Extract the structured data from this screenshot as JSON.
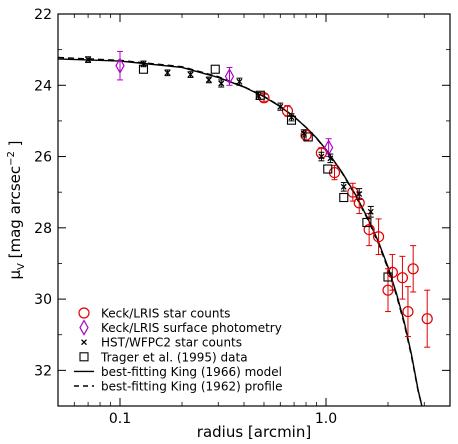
{
  "chart_data": {
    "type": "scatter",
    "xlabel": "radius [arcmin]",
    "ylabel_parts": {
      "mu": "μ",
      "sub": "V",
      "unit": " [mag arcsec",
      "exp": "−2",
      "close": " ]"
    },
    "x_scale": "log",
    "xlim": [
      0.05,
      4.0
    ],
    "ylim": [
      33,
      22
    ],
    "y_inverted": true,
    "x_ticks": [
      0.1,
      1.0
    ],
    "x_tick_labels": [
      "0.1",
      "1.0"
    ],
    "y_ticks": [
      22,
      24,
      26,
      28,
      30,
      32
    ],
    "y_tick_labels": [
      "22",
      "24",
      "26",
      "28",
      "30",
      "32"
    ],
    "legend_position": "bottom-left",
    "legend": [
      {
        "label": "Keck/LRIS star counts",
        "marker": "circle",
        "color": "#e00000"
      },
      {
        "label": "Keck/LRIS surface photometry",
        "marker": "diamond",
        "color": "#b000c8"
      },
      {
        "label": "HST/WFPC2 star counts",
        "marker": "x",
        "color": "#000000"
      },
      {
        "label": "Trager et al. (1995) data",
        "marker": "square",
        "color": "#000000"
      },
      {
        "label": "best-fitting King (1966) model",
        "marker": "solid-line",
        "color": "#000000"
      },
      {
        "label": "best-fitting King (1962) profile",
        "marker": "dashed-line",
        "color": "#000000"
      }
    ],
    "series": [
      {
        "id": "keck-star-counts",
        "marker": "circle",
        "color": "#e00000",
        "points": [
          {
            "x": 0.5,
            "y": 24.35,
            "err": 0.1
          },
          {
            "x": 0.65,
            "y": 24.72,
            "err": 0.15
          },
          {
            "x": 0.8,
            "y": 25.4,
            "err": 0.15
          },
          {
            "x": 0.95,
            "y": 25.9,
            "err": 0.15
          },
          {
            "x": 1.1,
            "y": 26.45,
            "err": 0.2
          },
          {
            "x": 1.35,
            "y": 27.0,
            "err": 0.25
          },
          {
            "x": 1.45,
            "y": 27.3,
            "err": 0.3
          },
          {
            "x": 1.62,
            "y": 28.05,
            "err": 0.45
          },
          {
            "x": 1.8,
            "y": 28.25,
            "err": 0.5
          },
          {
            "x": 2.0,
            "y": 29.75,
            "err": 0.6
          },
          {
            "x": 2.1,
            "y": 29.25,
            "err": 0.5
          },
          {
            "x": 2.35,
            "y": 29.4,
            "err": 0.6
          },
          {
            "x": 2.5,
            "y": 30.35,
            "err": 0.7
          },
          {
            "x": 2.65,
            "y": 29.15,
            "err": 0.65
          },
          {
            "x": 3.1,
            "y": 30.55,
            "err": 0.8
          }
        ]
      },
      {
        "id": "keck-surface-photometry",
        "marker": "diamond",
        "color": "#b000c8",
        "points": [
          {
            "x": 0.1,
            "y": 23.45,
            "err": 0.4
          },
          {
            "x": 0.34,
            "y": 23.75,
            "err": 0.25
          },
          {
            "x": 1.03,
            "y": 25.75,
            "err": 0.25
          }
        ]
      },
      {
        "id": "hst-star-counts",
        "marker": "x",
        "color": "#000000",
        "points": [
          {
            "x": 0.07,
            "y": 23.28,
            "err": 0.08
          },
          {
            "x": 0.13,
            "y": 23.4,
            "err": 0.08
          },
          {
            "x": 0.17,
            "y": 23.65,
            "err": 0.08
          },
          {
            "x": 0.22,
            "y": 23.7,
            "err": 0.08
          },
          {
            "x": 0.27,
            "y": 23.85,
            "err": 0.08
          },
          {
            "x": 0.31,
            "y": 23.95,
            "err": 0.1
          },
          {
            "x": 0.38,
            "y": 23.9,
            "err": 0.1
          },
          {
            "x": 0.47,
            "y": 24.3,
            "err": 0.1
          },
          {
            "x": 0.6,
            "y": 24.6,
            "err": 0.1
          },
          {
            "x": 0.68,
            "y": 24.9,
            "err": 0.1
          },
          {
            "x": 0.78,
            "y": 25.35,
            "err": 0.1
          },
          {
            "x": 0.95,
            "y": 26.0,
            "err": 0.12
          },
          {
            "x": 1.05,
            "y": 26.05,
            "err": 0.12
          },
          {
            "x": 1.22,
            "y": 26.85,
            "err": 0.12
          },
          {
            "x": 1.45,
            "y": 27.05,
            "err": 0.15
          },
          {
            "x": 1.65,
            "y": 27.55,
            "err": 0.15
          }
        ]
      },
      {
        "id": "trager-data",
        "marker": "square",
        "color": "#000000",
        "points": [
          {
            "x": 0.13,
            "y": 23.55
          },
          {
            "x": 0.29,
            "y": 23.55
          },
          {
            "x": 0.48,
            "y": 24.28
          },
          {
            "x": 0.68,
            "y": 24.98
          },
          {
            "x": 0.82,
            "y": 25.45
          },
          {
            "x": 1.02,
            "y": 26.35
          },
          {
            "x": 1.22,
            "y": 27.15
          },
          {
            "x": 1.58,
            "y": 27.85
          },
          {
            "x": 2.0,
            "y": 29.38
          }
        ]
      }
    ],
    "model_curves": [
      {
        "id": "king-1966",
        "style": "solid",
        "color": "#000000",
        "points": [
          [
            0.05,
            23.26
          ],
          [
            0.1,
            23.32
          ],
          [
            0.2,
            23.5
          ],
          [
            0.3,
            23.78
          ],
          [
            0.4,
            24.05
          ],
          [
            0.5,
            24.32
          ],
          [
            0.6,
            24.6
          ],
          [
            0.7,
            24.88
          ],
          [
            0.8,
            25.18
          ],
          [
            0.9,
            25.48
          ],
          [
            1.0,
            25.8
          ],
          [
            1.2,
            26.45
          ],
          [
            1.4,
            27.1
          ],
          [
            1.6,
            27.75
          ],
          [
            1.8,
            28.4
          ],
          [
            2.0,
            29.1
          ],
          [
            2.2,
            29.85
          ],
          [
            2.4,
            30.65
          ],
          [
            2.6,
            31.55
          ],
          [
            2.8,
            32.55
          ],
          [
            2.92,
            33.0
          ]
        ]
      },
      {
        "id": "king-1962",
        "style": "dashed",
        "color": "#000000",
        "points": [
          [
            0.05,
            23.22
          ],
          [
            0.1,
            23.3
          ],
          [
            0.2,
            23.48
          ],
          [
            0.3,
            23.76
          ],
          [
            0.4,
            24.04
          ],
          [
            0.5,
            24.31
          ],
          [
            0.6,
            24.59
          ],
          [
            0.7,
            24.88
          ],
          [
            0.8,
            25.18
          ],
          [
            0.9,
            25.49
          ],
          [
            1.0,
            25.81
          ],
          [
            1.2,
            26.47
          ],
          [
            1.4,
            27.13
          ],
          [
            1.6,
            27.78
          ],
          [
            1.8,
            28.45
          ],
          [
            2.0,
            29.15
          ],
          [
            2.2,
            29.9
          ],
          [
            2.4,
            30.7
          ],
          [
            2.6,
            31.6
          ],
          [
            2.8,
            32.58
          ],
          [
            2.93,
            33.0
          ]
        ]
      }
    ]
  }
}
